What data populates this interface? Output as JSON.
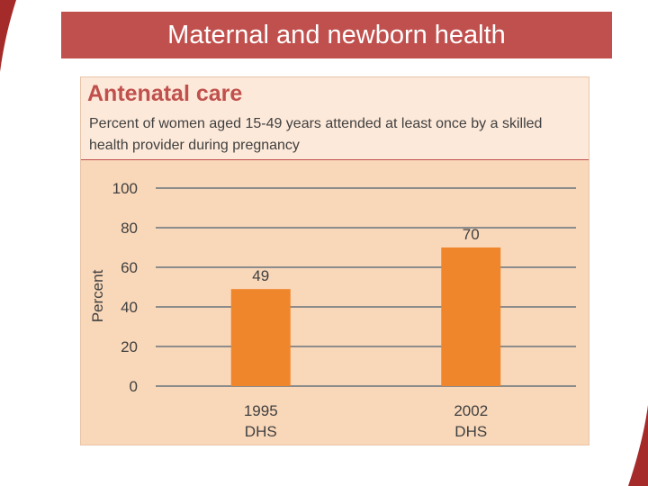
{
  "slide": {
    "title": "Maternal and newborn health"
  },
  "panel": {
    "title": "Antenatal care",
    "subtitle": "Percent of women aged 15-49 years attended at least once by a skilled health provider during pregnancy"
  },
  "colors": {
    "accent": "#c0504d",
    "bar": "#f0862b",
    "panel_bg": "#f9d7b9",
    "panel_header_bg": "#fde9d9",
    "grid": "#8c8c8c"
  },
  "chart_data": {
    "type": "bar",
    "categories": [
      [
        "1995",
        "DHS"
      ],
      [
        "2002",
        "DHS"
      ]
    ],
    "values": [
      49,
      70
    ],
    "data_labels": [
      "49",
      "70"
    ],
    "ylabel": "Percent",
    "ylim": [
      0,
      100
    ],
    "yticks": [
      0,
      20,
      40,
      60,
      80,
      100
    ],
    "grid": true
  }
}
